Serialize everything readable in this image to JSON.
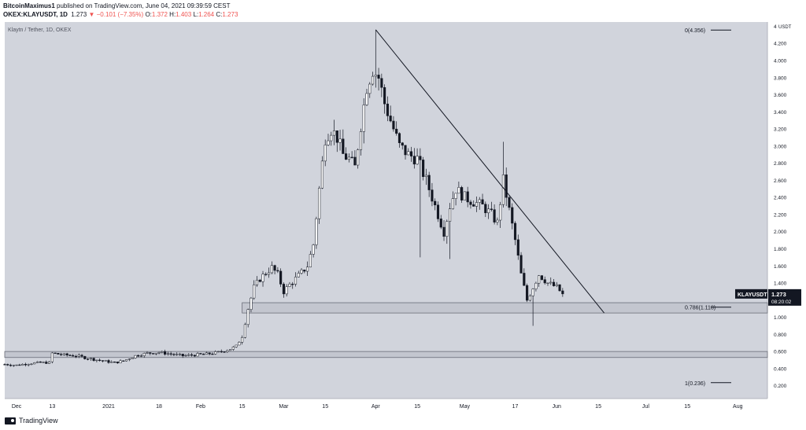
{
  "header": {
    "publisher": "BitcoinMaximus1",
    "published_text": "published on TradingView.com, June 04, 2021 09:39:59 CEST",
    "symbol": "OKEX:KLAYUSDT, 1D",
    "last": "1.273",
    "change": "−0.101 (−7.35%)",
    "o_label": "O:",
    "o": "1.372",
    "h_label": "H:",
    "h": "1.403",
    "l_label": "L:",
    "l": "1.264",
    "c_label": "C:",
    "c": "1.273"
  },
  "footer": {
    "brand": "TradingView"
  },
  "colors": {
    "plot_bg": "#d1d4dc",
    "zone_fill": "#c3c6cf",
    "candle_up": "#ffffff",
    "candle_down": "#131722",
    "outline": "#131722",
    "axis_bg": "#ffffff",
    "price_tag_bg": "#131722"
  },
  "chart_data": {
    "type": "candlestick",
    "title": "Klaytn / Tether, 1D, OKEX",
    "symbol_tag": "KLAYUSDT",
    "last_price_label": "1.273",
    "countdown_label": "08:20:02",
    "ylim": [
      0.05,
      4.45
    ],
    "y_ticks": [
      "0.200",
      "0.400",
      "0.600",
      "0.800",
      "1.000",
      "1.200",
      "1.400",
      "1.600",
      "1.800",
      "2.000",
      "2.200",
      "2.400",
      "2.600",
      "2.800",
      "3.000",
      "3.200",
      "3.400",
      "3.600",
      "3.800",
      "4.000",
      "4.200"
    ],
    "y_unit_label": "USDT",
    "y_top_tick": "4",
    "x_labels": [
      {
        "label": "Dec",
        "day": 4
      },
      {
        "label": "13",
        "day": 16
      },
      {
        "label": "2021",
        "day": 35
      },
      {
        "label": "18",
        "day": 52
      },
      {
        "label": "Feb",
        "day": 66
      },
      {
        "label": "15",
        "day": 80
      },
      {
        "label": "Mar",
        "day": 94
      },
      {
        "label": "15",
        "day": 108
      },
      {
        "label": "Apr",
        "day": 125
      },
      {
        "label": "15",
        "day": 139
      },
      {
        "label": "May",
        "day": 155
      },
      {
        "label": "17",
        "day": 172
      },
      {
        "label": "Jun",
        "day": 186
      },
      {
        "label": "15",
        "day": 200
      },
      {
        "label": "Jul",
        "day": 216
      },
      {
        "label": "15",
        "day": 230
      },
      {
        "label": "Aug",
        "day": 247
      }
    ],
    "x_range_days": [
      0,
      257
    ],
    "fib_levels": [
      {
        "label": "0(4.356)",
        "value": 4.356
      },
      {
        "label": "0.786(1.118)",
        "value": 1.118
      },
      {
        "label": "1(0.236)",
        "value": 0.236
      }
    ],
    "zones": [
      {
        "name": "resistance-zone",
        "from_day": 80,
        "to_day": 257,
        "low": 1.05,
        "high": 1.17
      },
      {
        "name": "support-zone",
        "from_day": 0,
        "to_day": 257,
        "low": 0.53,
        "high": 0.6
      }
    ],
    "trendline": {
      "start_day": 125,
      "start_price": 4.36,
      "end_day": 202,
      "end_price": 1.05
    },
    "series_anchors": [
      [
        0,
        0.45
      ],
      [
        4,
        0.44
      ],
      [
        8,
        0.46
      ],
      [
        12,
        0.47
      ],
      [
        15,
        0.47
      ],
      [
        16,
        0.58
      ],
      [
        20,
        0.56
      ],
      [
        24,
        0.55
      ],
      [
        28,
        0.52
      ],
      [
        33,
        0.49
      ],
      [
        37,
        0.47
      ],
      [
        40,
        0.49
      ],
      [
        44,
        0.55
      ],
      [
        48,
        0.58
      ],
      [
        52,
        0.59
      ],
      [
        56,
        0.57
      ],
      [
        60,
        0.55
      ],
      [
        64,
        0.56
      ],
      [
        68,
        0.57
      ],
      [
        72,
        0.59
      ],
      [
        76,
        0.63
      ],
      [
        78,
        0.66
      ],
      [
        80,
        0.78
      ],
      [
        82,
        1.1
      ],
      [
        84,
        1.35
      ],
      [
        86,
        1.45
      ],
      [
        88,
        1.52
      ],
      [
        90,
        1.58
      ],
      [
        92,
        1.5
      ],
      [
        94,
        1.3
      ],
      [
        96,
        1.38
      ],
      [
        98,
        1.45
      ],
      [
        100,
        1.52
      ],
      [
        102,
        1.6
      ],
      [
        104,
        1.85
      ],
      [
        106,
        2.5
      ],
      [
        108,
        3.1
      ],
      [
        110,
        3.2
      ],
      [
        112,
        3.1
      ],
      [
        114,
        2.9
      ],
      [
        116,
        2.85
      ],
      [
        118,
        2.75
      ],
      [
        120,
        3.25
      ],
      [
        122,
        3.7
      ],
      [
        124,
        3.9
      ],
      [
        126,
        3.8
      ],
      [
        128,
        3.5
      ],
      [
        130,
        3.3
      ],
      [
        133,
        3.0
      ],
      [
        136,
        2.9
      ],
      [
        139,
        2.85
      ],
      [
        142,
        2.6
      ],
      [
        144,
        2.4
      ],
      [
        146,
        2.2
      ],
      [
        148,
        2.0
      ],
      [
        150,
        2.3
      ],
      [
        152,
        2.5
      ],
      [
        155,
        2.4
      ],
      [
        158,
        2.35
      ],
      [
        161,
        2.3
      ],
      [
        164,
        2.2
      ],
      [
        166,
        2.1
      ],
      [
        168,
        2.6
      ],
      [
        170,
        2.25
      ],
      [
        172,
        1.9
      ],
      [
        174,
        1.5
      ],
      [
        176,
        1.2
      ],
      [
        178,
        1.35
      ],
      [
        180,
        1.5
      ],
      [
        183,
        1.4
      ],
      [
        186,
        1.35
      ],
      [
        188,
        1.27
      ]
    ]
  }
}
